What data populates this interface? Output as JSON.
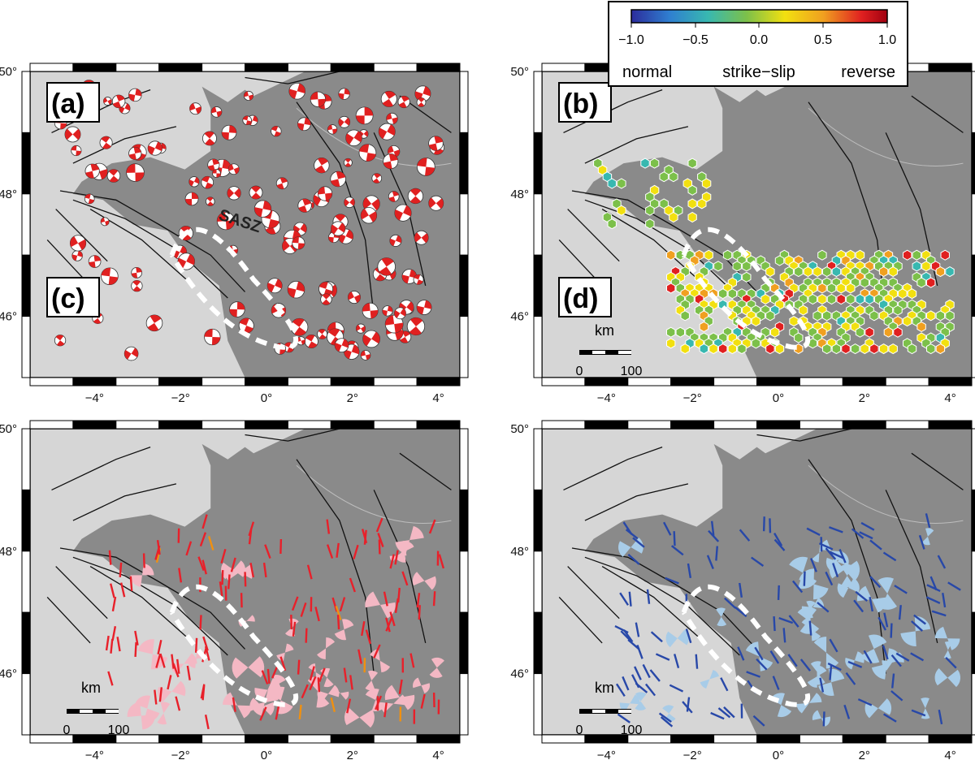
{
  "figure": {
    "panels": [
      {
        "id": "a",
        "letter": "(a)",
        "feature": "focal-mechanisms",
        "sasz_label": "SASZ"
      },
      {
        "id": "b",
        "letter": "(b)",
        "feature": "hexagon-regime"
      },
      {
        "id": "c",
        "letter": "(c)",
        "feature": "shmax-red"
      },
      {
        "id": "d",
        "letter": "(d)",
        "feature": "shmax-blue"
      }
    ],
    "lon_ticks": [
      "−4°",
      "−2°",
      "0°",
      "2°",
      "4°"
    ],
    "lat_ticks": [
      "50°",
      "48°",
      "46°"
    ],
    "scalebar": {
      "unit": "km",
      "label_left": "0",
      "label_right": "100"
    },
    "colorbar": {
      "ticks": [
        "−1.0",
        "−0.5",
        "0.0",
        "0.5",
        "1.0"
      ],
      "words": [
        "normal",
        "strike−slip",
        "reverse"
      ],
      "colors": [
        "#2c2c9c",
        "#2f7fd0",
        "#38b8b0",
        "#7cc04a",
        "#f2e010",
        "#f0a020",
        "#e02020",
        "#a00010"
      ]
    },
    "colors": {
      "sea": "#d6d6d6",
      "land": "#8a8a8a",
      "beach_red": "#e02020",
      "shmax_red": "#e8202a",
      "shmax_orange": "#f09010",
      "pink": "#f4b8c4",
      "blue_line": "#2848a8",
      "blue_fan": "#a8cce8"
    }
  },
  "chart_data": [
    {
      "type": "map",
      "panel": "(a)",
      "lon_range": [
        -5.5,
        4.5
      ],
      "lat_range": [
        45,
        50
      ],
      "annotations": [
        "SASZ"
      ]
    },
    {
      "type": "map",
      "panel": "(b)",
      "lon_range": [
        -5.5,
        4.5
      ],
      "lat_range": [
        45,
        50
      ],
      "colorbar_range": [
        -1.0,
        1.0
      ]
    },
    {
      "type": "map",
      "panel": "(c)",
      "lon_range": [
        -5.5,
        4.5
      ],
      "lat_range": [
        45,
        50
      ]
    },
    {
      "type": "map",
      "panel": "(d)",
      "lon_range": [
        -5.5,
        4.5
      ],
      "lat_range": [
        45,
        50
      ]
    }
  ]
}
